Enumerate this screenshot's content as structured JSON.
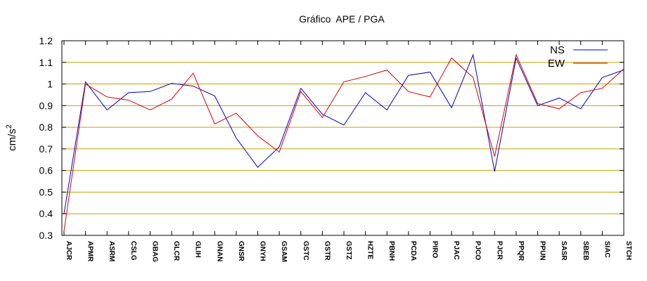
{
  "chart_data": {
    "type": "line",
    "title": "Gráfico  APE / PGA",
    "ylabel": "cm/s",
    "ylabel_superscript": "2",
    "ylim": [
      0.3,
      1.2
    ],
    "yticks": [
      "0.3",
      "0.4",
      "0.5",
      "0.6",
      "0.7",
      "0.8",
      "0.9",
      "1",
      "1.1",
      "1.2"
    ],
    "grid": "horizontal",
    "grid_color": "#c8a000",
    "legend_position": "top-right",
    "categories": [
      "AJCR",
      "APMR",
      "ASRM",
      "CSLG",
      "GBAG",
      "GLCR",
      "GLIH",
      "GNAN",
      "GNSR",
      "GNYH",
      "GSAM",
      "GSTC",
      "GSTR",
      "GSTZ",
      "HZTE",
      "PBNH",
      "PCDA",
      "PIRO",
      "PJAC",
      "PJCO",
      "PJCR",
      "PPQR",
      "PPUN",
      "SASR",
      "SBEB",
      "SIAC",
      "STCH"
    ],
    "series": [
      {
        "name": "NS",
        "color": "#0000cc",
        "values": [
          0.4,
          1.01,
          0.88,
          0.96,
          0.965,
          1.003,
          0.99,
          0.945,
          0.75,
          0.615,
          0.71,
          0.98,
          0.86,
          0.81,
          0.96,
          0.88,
          1.04,
          1.055,
          0.89,
          1.135,
          0.595,
          1.12,
          0.9,
          0.935,
          0.885,
          1.03,
          1.065
        ]
      },
      {
        "name": "EW",
        "color": "#dd0000",
        "values": [
          0.32,
          1.0,
          0.94,
          0.925,
          0.88,
          0.93,
          1.05,
          0.815,
          0.865,
          0.76,
          0.685,
          0.965,
          0.845,
          1.01,
          1.035,
          1.065,
          0.965,
          0.94,
          1.12,
          1.03,
          0.665,
          1.135,
          0.91,
          0.885,
          0.96,
          0.98,
          1.07
        ]
      }
    ]
  }
}
